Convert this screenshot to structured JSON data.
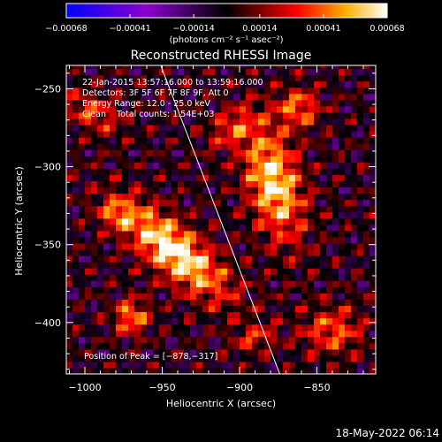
{
  "chart_data": {
    "type": "heatmap",
    "title": "Reconstructed RHESSI Image",
    "xlabel": "Heliocentric X (arcsec)",
    "ylabel": "Heliocentric Y (arcsec)",
    "xlim": [
      -1012,
      -812
    ],
    "ylim": [
      -433,
      -235
    ],
    "x_ticks": [
      -1000,
      -950,
      -900,
      -850
    ],
    "y_ticks": [
      -250,
      -300,
      -350,
      -400
    ],
    "x_tick_labels": [
      "−1000",
      "−950",
      "−900",
      "−850"
    ],
    "y_tick_labels": [
      "−250",
      "−300",
      "−350",
      "−400"
    ],
    "colorbar": {
      "min": -0.00068,
      "max": 0.00068,
      "ticks": [
        -0.00068,
        -0.00041,
        -0.00014,
        0.00014,
        0.00041,
        0.00068
      ],
      "tick_labels": [
        "−0.00068",
        "−0.00041",
        "−0.00014",
        "0.00014",
        "0.00041",
        "0.00068"
      ],
      "unit_label": "(photons cm⁻² s⁻¹ asec⁻²)"
    },
    "info_lines": [
      "22-Jan-2015 13:57:16.000 to 13:59:16.000",
      "Detectors: 3F 5F 6F 7F 8F 9F, Att 0",
      "Energy Range: 12.0 - 25.0 keV",
      "Clean    Total counts: 1.54E+03"
    ],
    "peak_label": "Position of Peak = [−878,−317]",
    "peak_position": [
      -878,
      -317
    ],
    "limb_line": [
      [
        -951,
        -235
      ],
      [
        -874,
        -433
      ]
    ],
    "sources": [
      {
        "x": -942,
        "y": -354,
        "sx": 30,
        "sy": 11,
        "rot": -0.7,
        "amp": 0.00068
      },
      {
        "x": -980,
        "y": -330,
        "sx": 8,
        "sy": 7,
        "rot": 0.0,
        "amp": 0.0003
      },
      {
        "x": -878,
        "y": -310,
        "sx": 12,
        "sy": 26,
        "rot": 0.25,
        "amp": 0.00062
      },
      {
        "x": -862,
        "y": -262,
        "sx": 10,
        "sy": 9,
        "rot": 0.0,
        "amp": 0.0004
      },
      {
        "x": -970,
        "y": -396,
        "sx": 8,
        "sy": 8,
        "rot": 0.0,
        "amp": 0.00045
      },
      {
        "x": -995,
        "y": -265,
        "sx": 14,
        "sy": 8,
        "rot": -0.5,
        "amp": 0.00032
      },
      {
        "x": -905,
        "y": -275,
        "sx": 12,
        "sy": 8,
        "rot": 0.6,
        "amp": 0.0003
      },
      {
        "x": -840,
        "y": -405,
        "sx": 14,
        "sy": 11,
        "rot": 0.0,
        "amp": 0.00036
      },
      {
        "x": -890,
        "y": -410,
        "sx": 10,
        "sy": 6,
        "rot": 0.3,
        "amp": 0.00028
      }
    ]
  },
  "footer": {
    "timestamp": "18-May-2022 06:14"
  }
}
